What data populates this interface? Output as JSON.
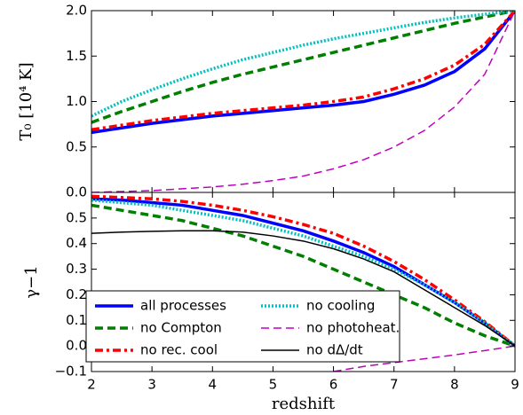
{
  "chart_data": [
    {
      "type": "line",
      "ylabel": "T₀ [10⁴ K]",
      "x": [
        2,
        2.5,
        3,
        3.5,
        4,
        4.5,
        5,
        5.5,
        6,
        6.5,
        7,
        7.5,
        8,
        8.5,
        9
      ],
      "xlim": [
        2,
        9
      ],
      "ylim": [
        0,
        2
      ],
      "yticks": [
        {
          "value": 0,
          "label": "0.0"
        },
        {
          "value": 0.5,
          "label": "0.5"
        },
        {
          "value": 1,
          "label": "1.0"
        },
        {
          "value": 1.5,
          "label": "1.5"
        },
        {
          "value": 2,
          "label": "2.0"
        }
      ],
      "series": [
        {
          "color": "#0000ff",
          "linestyle": "solid",
          "linewidth": 3.5,
          "values": [
            0.66,
            0.71,
            0.76,
            0.8,
            0.84,
            0.87,
            0.9,
            0.93,
            0.96,
            1.0,
            1.08,
            1.18,
            1.33,
            1.58,
            2.0
          ]
        },
        {
          "color": "#007f00",
          "linestyle": "dashed",
          "linewidth": 3.5,
          "values": [
            0.77,
            0.89,
            1.0,
            1.11,
            1.21,
            1.3,
            1.38,
            1.46,
            1.54,
            1.62,
            1.7,
            1.78,
            1.86,
            1.93,
            2.0
          ]
        },
        {
          "color": "#ff0000",
          "linestyle": "dashdot",
          "linewidth": 3.5,
          "values": [
            0.69,
            0.74,
            0.79,
            0.83,
            0.87,
            0.9,
            0.93,
            0.96,
            1.0,
            1.05,
            1.14,
            1.25,
            1.4,
            1.63,
            2.0
          ]
        },
        {
          "color": "#00bfbf",
          "linestyle": "dotted",
          "linewidth": 3.5,
          "values": [
            0.84,
            1.0,
            1.13,
            1.25,
            1.36,
            1.46,
            1.54,
            1.62,
            1.69,
            1.75,
            1.81,
            1.87,
            1.92,
            1.96,
            2.0
          ]
        },
        {
          "color": "#bf00bf",
          "linestyle": "dashed",
          "linewidth": 1.5,
          "values": [
            0.0,
            0.01,
            0.02,
            0.04,
            0.06,
            0.09,
            0.13,
            0.18,
            0.26,
            0.36,
            0.5,
            0.68,
            0.94,
            1.3,
            2.0
          ]
        }
      ]
    },
    {
      "type": "line",
      "ylabel": "γ−1",
      "xlabel": "redshift",
      "x": [
        2,
        2.5,
        3,
        3.5,
        4,
        4.5,
        5,
        5.5,
        6,
        6.5,
        7,
        7.5,
        8,
        8.5,
        9
      ],
      "xlim": [
        2,
        9
      ],
      "ylim": [
        -0.1,
        0.6
      ],
      "xticks": [
        2,
        3,
        4,
        5,
        6,
        7,
        8,
        9
      ],
      "yticks": [
        {
          "value": -0.1,
          "label": "−0.1"
        },
        {
          "value": 0,
          "label": "0.0"
        },
        {
          "value": 0.1,
          "label": "0.1"
        },
        {
          "value": 0.2,
          "label": "0.2"
        },
        {
          "value": 0.3,
          "label": "0.3"
        },
        {
          "value": 0.4,
          "label": "0.4"
        },
        {
          "value": 0.5,
          "label": "0.5"
        }
      ],
      "legend": "lower left",
      "series": [
        {
          "name": "all processes",
          "color": "#0000ff",
          "linestyle": "solid",
          "linewidth": 3.5,
          "values": [
            0.575,
            0.57,
            0.56,
            0.55,
            0.53,
            0.51,
            0.48,
            0.45,
            0.41,
            0.365,
            0.31,
            0.24,
            0.17,
            0.09,
            0.0
          ]
        },
        {
          "name": "no Compton",
          "color": "#007f00",
          "linestyle": "dashed",
          "linewidth": 3.5,
          "values": [
            0.55,
            0.53,
            0.51,
            0.49,
            0.46,
            0.43,
            0.39,
            0.35,
            0.3,
            0.25,
            0.2,
            0.15,
            0.09,
            0.04,
            0.0
          ]
        },
        {
          "name": "no rec. cool",
          "color": "#ff0000",
          "linestyle": "dashdot",
          "linewidth": 3.5,
          "values": [
            0.585,
            0.58,
            0.575,
            0.565,
            0.55,
            0.53,
            0.505,
            0.475,
            0.44,
            0.39,
            0.33,
            0.26,
            0.18,
            0.095,
            0.0
          ]
        },
        {
          "name": "no cooling",
          "color": "#00bfbf",
          "linestyle": "dotted",
          "linewidth": 3.5,
          "values": [
            0.57,
            0.56,
            0.55,
            0.53,
            0.51,
            0.49,
            0.46,
            0.43,
            0.39,
            0.35,
            0.3,
            0.24,
            0.17,
            0.09,
            0.0
          ]
        },
        {
          "name": "no photoheat.",
          "color": "#bf00bf",
          "linestyle": "dashed",
          "linewidth": 1.5,
          "values": [
            null,
            null,
            null,
            null,
            null,
            null,
            null,
            null,
            -0.1,
            -0.08,
            -0.065,
            -0.05,
            -0.035,
            -0.018,
            0.0
          ]
        },
        {
          "name": "no dΔ/dt",
          "color": "#000000",
          "linestyle": "solid",
          "linewidth": 1.5,
          "values": [
            0.44,
            0.445,
            0.448,
            0.45,
            0.45,
            0.445,
            0.43,
            0.41,
            0.38,
            0.34,
            0.29,
            0.22,
            0.15,
            0.08,
            0.0
          ]
        }
      ]
    }
  ]
}
